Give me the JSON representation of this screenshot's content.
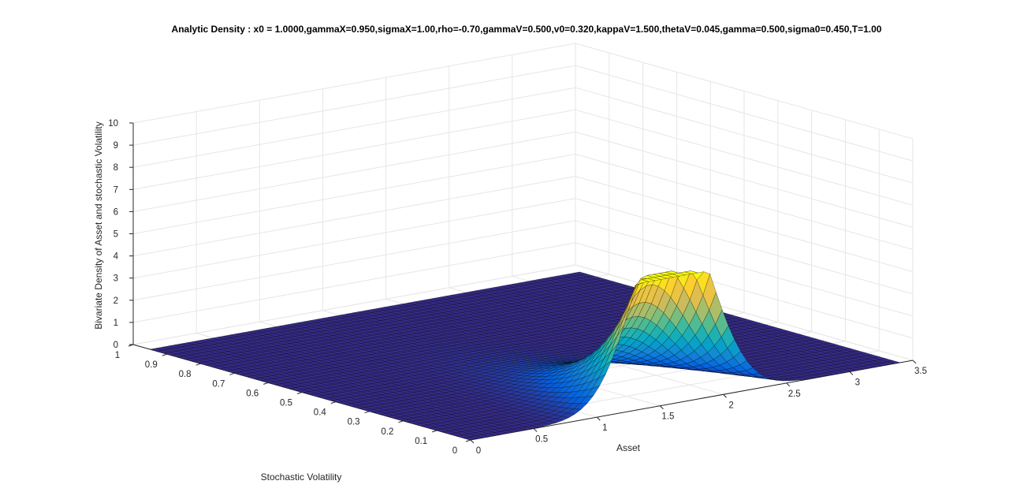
{
  "chart_data": {
    "type": "surface",
    "title": "Analytic Density : x0 = 1.0000,gammaX=0.950,sigmaX=1.00,rho=-0.70,gammaV=0.500,v0=0.320,kappaV=1.500,thetaV=0.045,gamma=0.500,sigma0=0.450,T=1.00",
    "xlabel": "Asset",
    "ylabel": "Stochastic Volatility",
    "zlabel": "Bivariate Density of Asset and stochastic Volatility",
    "xlim": [
      0,
      3.5
    ],
    "ylim": [
      0,
      1
    ],
    "zlim": [
      0,
      10
    ],
    "x_ticks": [
      "0",
      "0.5",
      "1",
      "1.5",
      "2",
      "2.5",
      "3",
      "3.5"
    ],
    "y_ticks": [
      "0",
      "0.1",
      "0.2",
      "0.3",
      "0.4",
      "0.5",
      "0.6",
      "0.7",
      "0.8",
      "0.9",
      "1"
    ],
    "z_ticks": [
      "0",
      "1",
      "2",
      "3",
      "4",
      "5",
      "6",
      "7",
      "8",
      "9",
      "10"
    ],
    "grid": true,
    "colormap": "parula",
    "colormap_colors": [
      "#352a87",
      "#0363e1",
      "#1485d4",
      "#06a7c6",
      "#38b99e",
      "#92bf73",
      "#d9ba56",
      "#fcce2e",
      "#f9fb0e"
    ],
    "surface_domain": {
      "x": [
        0,
        3.4
      ],
      "y": [
        0,
        0.95
      ]
    },
    "peak": {
      "x": 1.6,
      "y": 0.05,
      "z": 5.7
    }
  }
}
